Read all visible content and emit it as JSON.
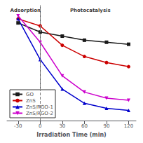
{
  "chart_data": {
    "type": "line",
    "xlabel": "Irradiation Time (min)",
    "x": [
      -30,
      0,
      30,
      60,
      90,
      120
    ],
    "series": [
      {
        "name": "GO",
        "color": "#1a1a1a",
        "marker": "square",
        "values": [
          0.96,
          0.87,
          0.83,
          0.79,
          0.77,
          0.75
        ]
      },
      {
        "name": "ZnS",
        "color": "#cc0000",
        "marker": "circle",
        "values": [
          1.0,
          0.93,
          0.74,
          0.63,
          0.57,
          0.53
        ]
      },
      {
        "name": "ZnS/RGO-1",
        "color": "#0000cc",
        "marker": "triangle-up",
        "values": [
          1.0,
          0.6,
          0.31,
          0.17,
          0.12,
          0.1
        ]
      },
      {
        "name": "ZnS/RGO-2",
        "color": "#cc00cc",
        "marker": "triangle-down",
        "values": [
          1.03,
          0.77,
          0.44,
          0.28,
          0.22,
          0.2
        ]
      }
    ],
    "xlim": [
      -45,
      130
    ],
    "xticks": [
      -30,
      0,
      30,
      60,
      90,
      120
    ],
    "ylim": [
      0.0,
      1.13
    ],
    "tick_labels": "x",
    "grid": false,
    "legend": "lower left",
    "annotations": [
      {
        "text": "Adsorption",
        "x": -20,
        "y": 1.08
      },
      {
        "text": "Photocatalysis",
        "x": 68,
        "y": 1.08
      }
    ],
    "vlines": [
      {
        "x": 0,
        "line_style": "dashed",
        "color": "gray"
      }
    ]
  }
}
